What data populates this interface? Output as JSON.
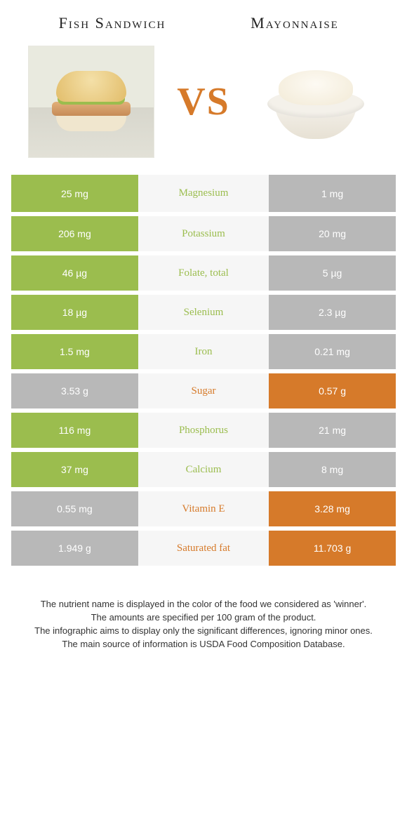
{
  "colors": {
    "food_a": "#9bbd4e",
    "food_b": "#d67a2a",
    "neutral": "#b8b8b8",
    "row_bg": "#f6f6f6",
    "text_dark": "#333333"
  },
  "header": {
    "title_a": "Fish Sandwich",
    "title_b": "Mayonnaise",
    "vs": "VS"
  },
  "rows": [
    {
      "name": "Magnesium",
      "a": "25 mg",
      "b": "1 mg",
      "winner": "a"
    },
    {
      "name": "Potassium",
      "a": "206 mg",
      "b": "20 mg",
      "winner": "a"
    },
    {
      "name": "Folate, total",
      "a": "46 µg",
      "b": "5 µg",
      "winner": "a"
    },
    {
      "name": "Selenium",
      "a": "18 µg",
      "b": "2.3 µg",
      "winner": "a"
    },
    {
      "name": "Iron",
      "a": "1.5 mg",
      "b": "0.21 mg",
      "winner": "a"
    },
    {
      "name": "Sugar",
      "a": "3.53 g",
      "b": "0.57 g",
      "winner": "b"
    },
    {
      "name": "Phosphorus",
      "a": "116 mg",
      "b": "21 mg",
      "winner": "a"
    },
    {
      "name": "Calcium",
      "a": "37 mg",
      "b": "8 mg",
      "winner": "a"
    },
    {
      "name": "Vitamin E",
      "a": "0.55 mg",
      "b": "3.28 mg",
      "winner": "b"
    },
    {
      "name": "Saturated fat",
      "a": "1.949 g",
      "b": "11.703 g",
      "winner": "b"
    }
  ],
  "footnote": {
    "l1": "The nutrient name is displayed in the color of the food we considered as 'winner'.",
    "l2": "The amounts are specified per 100 gram of the product.",
    "l3": "The infographic aims to display only the significant differences, ignoring minor ones.",
    "l4": "The main source of information is USDA Food Composition Database."
  }
}
